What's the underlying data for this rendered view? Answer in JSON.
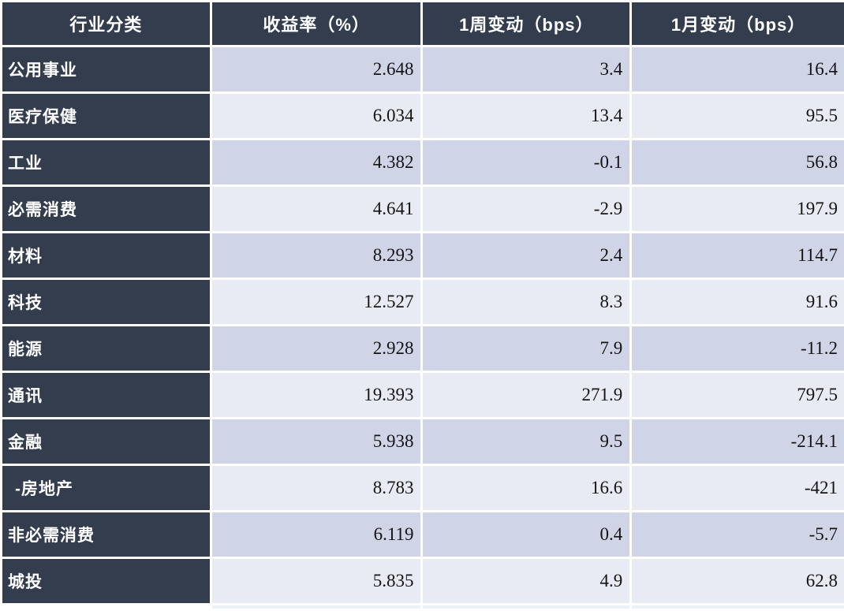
{
  "chart_data": {
    "type": "table",
    "columns": [
      "行业分类",
      "收益率（%）",
      "1周变动（bps）",
      "1月变动（bps）"
    ],
    "rows": [
      [
        "公用事业",
        2.648,
        3.4,
        16.4
      ],
      [
        "医疗保健",
        6.034,
        13.4,
        95.5
      ],
      [
        "工业",
        4.382,
        -0.1,
        56.8
      ],
      [
        "必需消费",
        4.641,
        -2.9,
        197.9
      ],
      [
        "材料",
        8.293,
        2.4,
        114.7
      ],
      [
        "科技",
        12.527,
        8.3,
        91.6
      ],
      [
        "能源",
        2.928,
        7.9,
        -11.2
      ],
      [
        "通讯",
        19.393,
        271.9,
        797.5
      ],
      [
        "金融",
        5.938,
        9.5,
        -214.1
      ],
      [
        "-房地产",
        8.783,
        16.6,
        -421
      ],
      [
        "非必需消费",
        6.119,
        0.4,
        -5.7
      ],
      [
        "城投",
        5.835,
        4.9,
        62.8
      ]
    ],
    "layout": {
      "indented_row_labels": [
        "-房地产"
      ],
      "alternating_rows": true,
      "first_row_shade": "dark"
    }
  },
  "colors": {
    "header_bg": "#333d4e",
    "row_dark": "#cfd4e7",
    "row_light": "#e9ebf4",
    "sliver": "#eef0f7",
    "grid": "#ffffff",
    "num_color": "#141414",
    "header_text": "#ffffff"
  }
}
